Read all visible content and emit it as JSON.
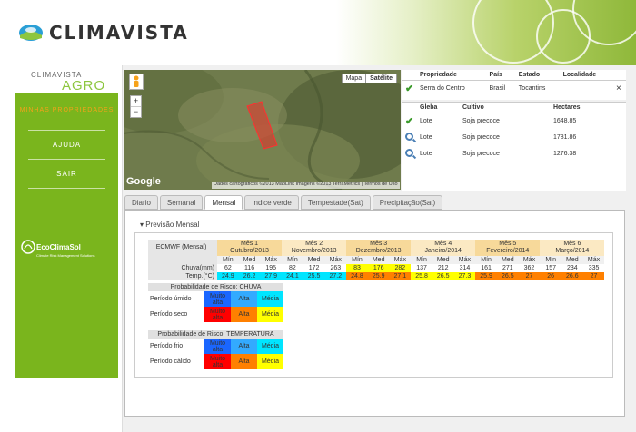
{
  "brand": {
    "name": "CLIMAVISTA",
    "sub": "CLIMAVISTA",
    "agro": "AGRO"
  },
  "sidebar": {
    "items": [
      {
        "label": "MINHAS PROPRIEDADES"
      },
      {
        "label": "AJUDA"
      },
      {
        "label": "SAIR"
      }
    ],
    "partner": {
      "name": "EcoClimaSol",
      "tagline": "Climate Risk Management Solutions"
    }
  },
  "map": {
    "mode_map": "Mapa",
    "mode_sat": "Satélite",
    "zoom_in": "+",
    "zoom_out": "−",
    "google": "Google",
    "credit": "Dados cartográficos ©2013 MapLink Imagens ©2013 TerraMetrics  |  Termos de Uso"
  },
  "property": {
    "headers": [
      "Propriedade",
      "País",
      "Estado",
      "Localidade"
    ],
    "row": {
      "name": "Serra do Centro",
      "country": "Brasil",
      "state": "Tocantins",
      "locality": "",
      "close": "×"
    }
  },
  "gleba": {
    "headers": [
      "Gleba",
      "Cultivo",
      "Hectares"
    ],
    "rows": [
      {
        "icon": "check-icon",
        "gleba": "Lote",
        "cultivo": "Soja precoce",
        "hectares": "1648.85"
      },
      {
        "icon": "search-icon",
        "gleba": "Lote",
        "cultivo": "Soja precoce",
        "hectares": "1781.86"
      },
      {
        "icon": "search-icon",
        "gleba": "Lote",
        "cultivo": "Soja precoce",
        "hectares": "1276.38"
      }
    ]
  },
  "tabs": [
    "Diario",
    "Semanal",
    "Mensal",
    "Indice verde",
    "Tempestade(Sat)",
    "Precipitação(Sat)"
  ],
  "section_title": "Previsão Mensal",
  "ecmwf": {
    "label": "ECMWF (Mensal)",
    "months": [
      {
        "mes": "Mês 1",
        "name": "Outubro/2013"
      },
      {
        "mes": "Mês 2",
        "name": "Novembro/2013"
      },
      {
        "mes": "Mês 3",
        "name": "Dezembro/2013"
      },
      {
        "mes": "Mês 4",
        "name": "Janeiro/2014"
      },
      {
        "mes": "Mês 5",
        "name": "Fevereiro/2014"
      },
      {
        "mes": "Mês 6",
        "name": "Março/2014"
      }
    ],
    "sub": [
      "Mín",
      "Med",
      "Máx"
    ],
    "chuva_label": "Chuva(mm)",
    "temp_label": "Temp.(°C)",
    "chuva": [
      [
        "62",
        "116",
        "195"
      ],
      [
        "82",
        "172",
        "263"
      ],
      [
        "83",
        "176",
        "282"
      ],
      [
        "137",
        "212",
        "314"
      ],
      [
        "161",
        "271",
        "362"
      ],
      [
        "157",
        "234",
        "335"
      ]
    ],
    "temp": [
      [
        "24.9",
        "26.2",
        "27.9"
      ],
      [
        "24.1",
        "25.5",
        "27.2"
      ],
      [
        "24.8",
        "25.9",
        "27.1"
      ],
      [
        "25.8",
        "26.5",
        "27.3"
      ],
      [
        "25.9",
        "26.5",
        "27"
      ],
      [
        "26",
        "26.6",
        "27"
      ]
    ],
    "chuva_colors": [
      [
        "#fff",
        "#fff",
        "#fff"
      ],
      [
        "#fff",
        "#fff",
        "#fff"
      ],
      [
        "#ffff00",
        "#ffff00",
        "#ffff00"
      ],
      [
        "#fff",
        "#fff",
        "#fff"
      ],
      [
        "#fff",
        "#fff",
        "#fff"
      ],
      [
        "#fff",
        "#fff",
        "#fff"
      ]
    ],
    "temp_colors": [
      [
        "#00e5ff",
        "#00e5ff",
        "#00e5ff"
      ],
      [
        "#00e5ff",
        "#00e5ff",
        "#00e5ff"
      ],
      [
        "#ff8000",
        "#ff8000",
        "#ff8000"
      ],
      [
        "#ffff00",
        "#ffff00",
        "#ffff00"
      ],
      [
        "#ff8000",
        "#ff8000",
        "#ff8000"
      ],
      [
        "#ff8000",
        "#ff8000",
        "#ff8000"
      ]
    ]
  },
  "risk_chuva": {
    "title": "Probabilidade de Risco: CHUVA",
    "rows": [
      {
        "label": "Período úmido",
        "cells": [
          {
            "t": "Muito alta",
            "c": "#1a66ff"
          },
          {
            "t": "Alta",
            "c": "#33aaff"
          },
          {
            "t": "Média",
            "c": "#00e5ff"
          }
        ]
      },
      {
        "label": "Período seco",
        "cells": [
          {
            "t": "Muito alta",
            "c": "#ff0000"
          },
          {
            "t": "Alta",
            "c": "#ff8000"
          },
          {
            "t": "Média",
            "c": "#ffff00"
          }
        ]
      }
    ]
  },
  "risk_temp": {
    "title": "Probabilidade de Risco: TEMPERATURA",
    "rows": [
      {
        "label": "Período frio",
        "cells": [
          {
            "t": "Muito alta",
            "c": "#1a66ff"
          },
          {
            "t": "Alta",
            "c": "#33aaff"
          },
          {
            "t": "Média",
            "c": "#00e5ff"
          }
        ]
      },
      {
        "label": "Período cálido",
        "cells": [
          {
            "t": "Muito alta",
            "c": "#ff0000"
          },
          {
            "t": "Alta",
            "c": "#ff8000"
          },
          {
            "t": "Média",
            "c": "#ffff00"
          }
        ]
      }
    ]
  }
}
